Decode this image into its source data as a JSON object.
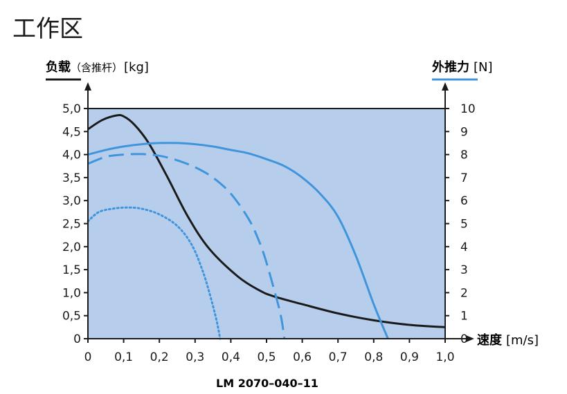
{
  "page": {
    "title": "工作区"
  },
  "chart_data": {
    "type": "line",
    "caption": "LM 2070–040–11",
    "xlabel": "速度",
    "xunit": "[m/s]",
    "y_left": {
      "label": "负载",
      "sublabel": "（含推杆）",
      "unit": "[kg]",
      "ticks": [
        "0",
        "0,5",
        "1,0",
        "1,5",
        "2,0",
        "2,5",
        "3,0",
        "3,5",
        "4,0",
        "4,5",
        "5,0"
      ],
      "range": [
        0,
        5
      ]
    },
    "y_right": {
      "label": "外推力",
      "unit": "[N]",
      "ticks": [
        "0",
        "1",
        "2",
        "3",
        "4",
        "5",
        "6",
        "7",
        "8",
        "9",
        "10"
      ],
      "range": [
        0,
        10
      ]
    },
    "x_ticks": [
      "0",
      "0,1",
      "0,2",
      "0,3",
      "0,4",
      "0,5",
      "0,6",
      "0,7",
      "0,8",
      "0,9",
      "1,0"
    ],
    "xlim": [
      0,
      1
    ],
    "colors": {
      "plot_bg": "#b7cdec",
      "blue": "#3f95dc",
      "black": "#1a1a1a"
    },
    "series": [
      {
        "axis": "left",
        "style": "solid",
        "color": "#1a1a1a",
        "x": [
          0,
          0.04,
          0.08,
          0.1,
          0.13,
          0.17,
          0.22,
          0.28,
          0.34,
          0.42,
          0.48,
          0.52,
          0.6,
          0.7,
          0.8,
          0.9,
          1.0
        ],
        "y": [
          4.55,
          4.75,
          4.85,
          4.83,
          4.65,
          4.25,
          3.55,
          2.65,
          1.95,
          1.35,
          1.05,
          0.92,
          0.75,
          0.55,
          0.4,
          0.3,
          0.25
        ]
      },
      {
        "axis": "right",
        "style": "solid",
        "color": "#3f95dc",
        "x": [
          0,
          0.05,
          0.1,
          0.15,
          0.2,
          0.25,
          0.3,
          0.35,
          0.4,
          0.45,
          0.5,
          0.55,
          0.6,
          0.65,
          0.7,
          0.75,
          0.8,
          0.84
        ],
        "y": [
          8.0,
          8.2,
          8.35,
          8.45,
          8.5,
          8.5,
          8.45,
          8.35,
          8.2,
          8.05,
          7.8,
          7.5,
          7.0,
          6.3,
          5.3,
          3.6,
          1.5,
          0
        ]
      },
      {
        "axis": "right",
        "style": "dashed",
        "color": "#3f95dc",
        "x": [
          0,
          0.05,
          0.1,
          0.15,
          0.2,
          0.25,
          0.3,
          0.35,
          0.4,
          0.45,
          0.48,
          0.5,
          0.52,
          0.54,
          0.55
        ],
        "y": [
          7.6,
          7.9,
          8.0,
          8.02,
          7.95,
          7.75,
          7.45,
          7.0,
          6.3,
          5.2,
          4.2,
          3.3,
          2.2,
          1.0,
          0
        ]
      },
      {
        "axis": "right",
        "style": "dotted",
        "color": "#3f95dc",
        "x": [
          0,
          0.03,
          0.07,
          0.11,
          0.15,
          0.2,
          0.25,
          0.29,
          0.32,
          0.34,
          0.36,
          0.37
        ],
        "y": [
          5.1,
          5.5,
          5.65,
          5.7,
          5.65,
          5.4,
          4.9,
          4.1,
          3.0,
          2.0,
          0.8,
          0
        ]
      }
    ]
  }
}
